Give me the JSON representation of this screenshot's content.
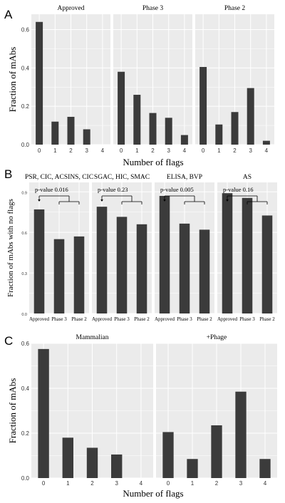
{
  "chart_data": [
    {
      "panel": "A",
      "type": "bar",
      "xlabel": "Number of flags",
      "ylabel": "Fraction of mAbs",
      "ylim": [
        0,
        0.68
      ],
      "yticks": [
        "0.0",
        "0.2",
        "0.4",
        "0.6"
      ],
      "grid": true,
      "categories": [
        "0",
        "1",
        "2",
        "3",
        "4"
      ],
      "facets": [
        {
          "title": "Approved",
          "values": [
            0.64,
            0.12,
            0.145,
            0.08,
            0
          ]
        },
        {
          "title": "Phase 3",
          "values": [
            0.38,
            0.26,
            0.165,
            0.14,
            0.05
          ]
        },
        {
          "title": "Phase 2",
          "values": [
            0.405,
            0.105,
            0.17,
            0.295,
            0.02
          ]
        }
      ]
    },
    {
      "panel": "B",
      "type": "bar",
      "ylabel": "Fraction of mAbs with no flags",
      "ylim": [
        0,
        0.97
      ],
      "yticks": [
        "0.0",
        "0.3",
        "0.6",
        "0.9"
      ],
      "grid": true,
      "categories": [
        "Approved",
        "Phase 3",
        "Phase 2"
      ],
      "facets": [
        {
          "title": "PSR, CIC, ACSINS, CIC",
          "values": [
            0.77,
            0.55,
            0.57
          ],
          "pvalue": "p-value 0.016"
        },
        {
          "title": "SGAC, HIC, SMAC",
          "values": [
            0.79,
            0.715,
            0.66
          ],
          "pvalue": "p-value 0.23"
        },
        {
          "title": "ELISA, BVP",
          "values": [
            0.87,
            0.665,
            0.62
          ],
          "pvalue": "p-value 0.005"
        },
        {
          "title": "AS",
          "values": [
            0.89,
            0.855,
            0.725
          ],
          "pvalue": "p-value 0.16"
        }
      ]
    },
    {
      "panel": "C",
      "type": "bar",
      "xlabel": "Number of flags",
      "ylabel": "Fraction of mAbs",
      "ylim": [
        0,
        0.6
      ],
      "yticks": [
        "0.0",
        "0.2",
        "0.4",
        "0.6"
      ],
      "grid": true,
      "categories": [
        "0",
        "1",
        "2",
        "3",
        "4"
      ],
      "facets": [
        {
          "title": "Mammalian",
          "values": [
            0.575,
            0.18,
            0.135,
            0.105,
            0
          ]
        },
        {
          "title": "+Phage",
          "values": [
            0.205,
            0.085,
            0.235,
            0.385,
            0.085
          ]
        }
      ]
    }
  ],
  "colors": {
    "bar": "#3b3b3b",
    "panel_bg": "#ebebeb",
    "grid": "#ffffff"
  }
}
